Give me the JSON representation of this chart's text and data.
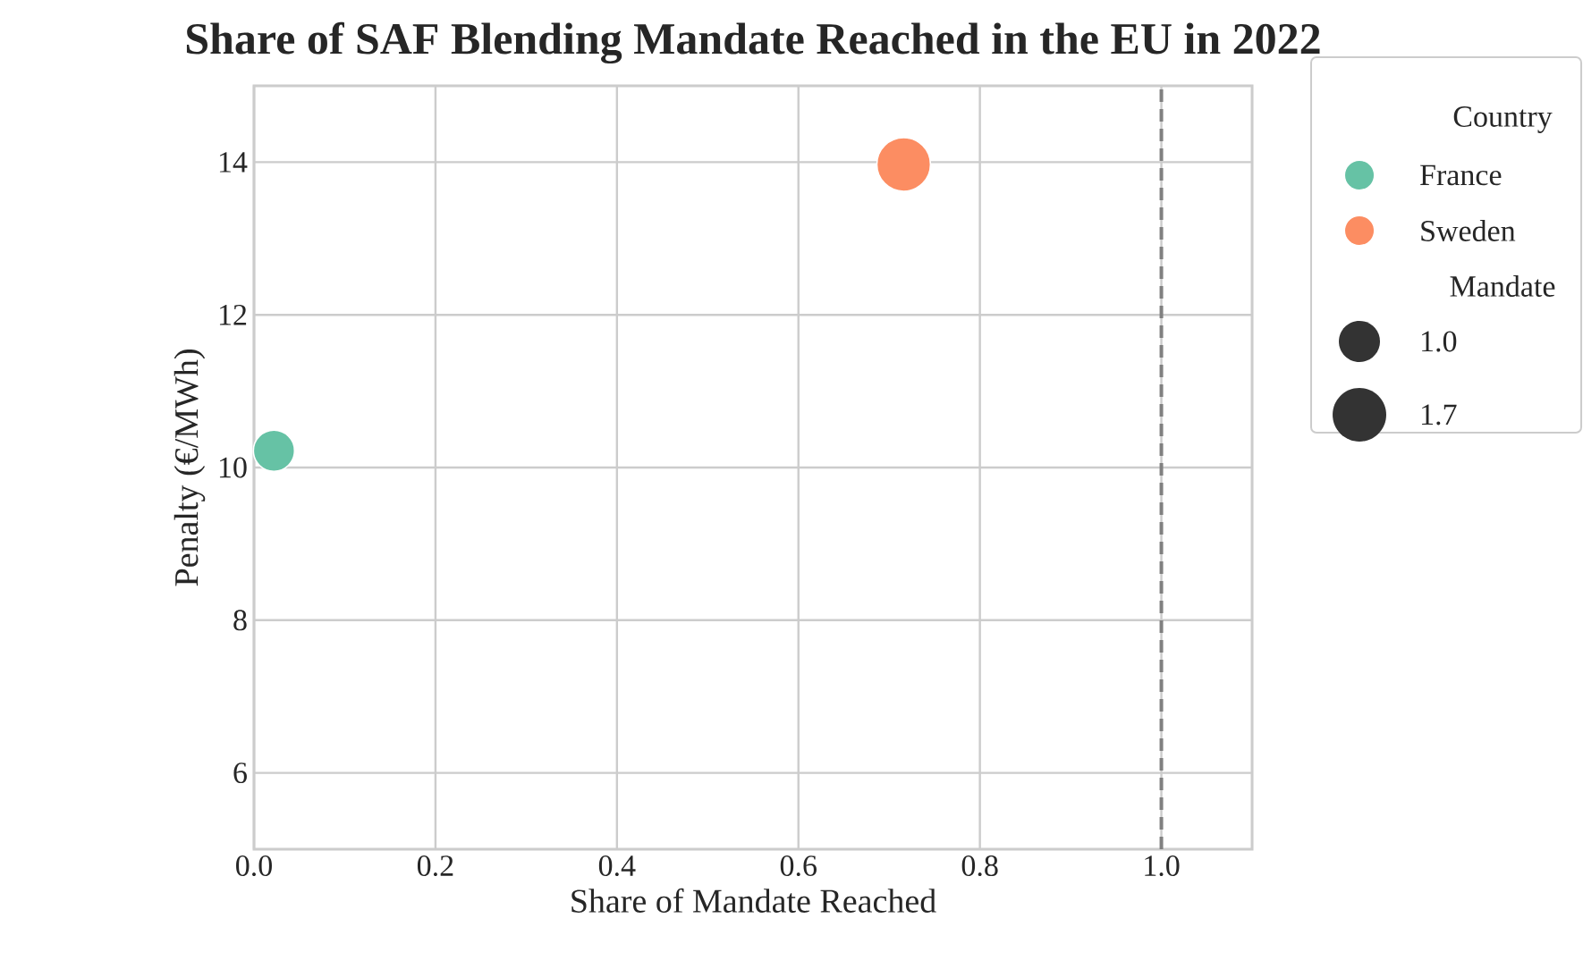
{
  "chart_data": {
    "type": "bubble",
    "title": "Share of SAF Blending Mandate Reached in the EU in 2022",
    "xlabel": "Share of Mandate Reached",
    "ylabel": "Penalty (€/MWh)",
    "legend_title": "Country",
    "annotations": [
      "Mandate"
    ],
    "series": [
      {
        "name": "France",
        "color": "#66c2a5",
        "x": [
          0.022
        ],
        "values": [
          10.22
        ],
        "sizes": [
          1.0
        ]
      },
      {
        "name": "Sweden",
        "color": "#fc8d62",
        "x": [
          0.716
        ],
        "values": [
          13.97
        ],
        "sizes": [
          1.7
        ]
      }
    ],
    "size_legend": [
      {
        "value": 1.0,
        "label": "1.0"
      },
      {
        "value": 1.7,
        "label": "1.7"
      }
    ],
    "xlim": [
      0,
      1.1
    ],
    "ylim": [
      5,
      15
    ],
    "xticks": [
      {
        "value": 0,
        "label": "0.0"
      },
      {
        "value": 0.2,
        "label": "0.2"
      },
      {
        "value": 0.4,
        "label": "0.4"
      },
      {
        "value": 0.6,
        "label": "0.6"
      },
      {
        "value": 0.8,
        "label": "0.8"
      },
      {
        "value": 1.0,
        "label": "1.0"
      }
    ],
    "yticks": [
      6,
      8,
      10,
      12,
      14
    ],
    "ref_lines": [
      {
        "axis": "x",
        "value": 1.0,
        "color": "#808080",
        "line_style": "dashed"
      }
    ],
    "grid": true,
    "legend": "top right"
  }
}
